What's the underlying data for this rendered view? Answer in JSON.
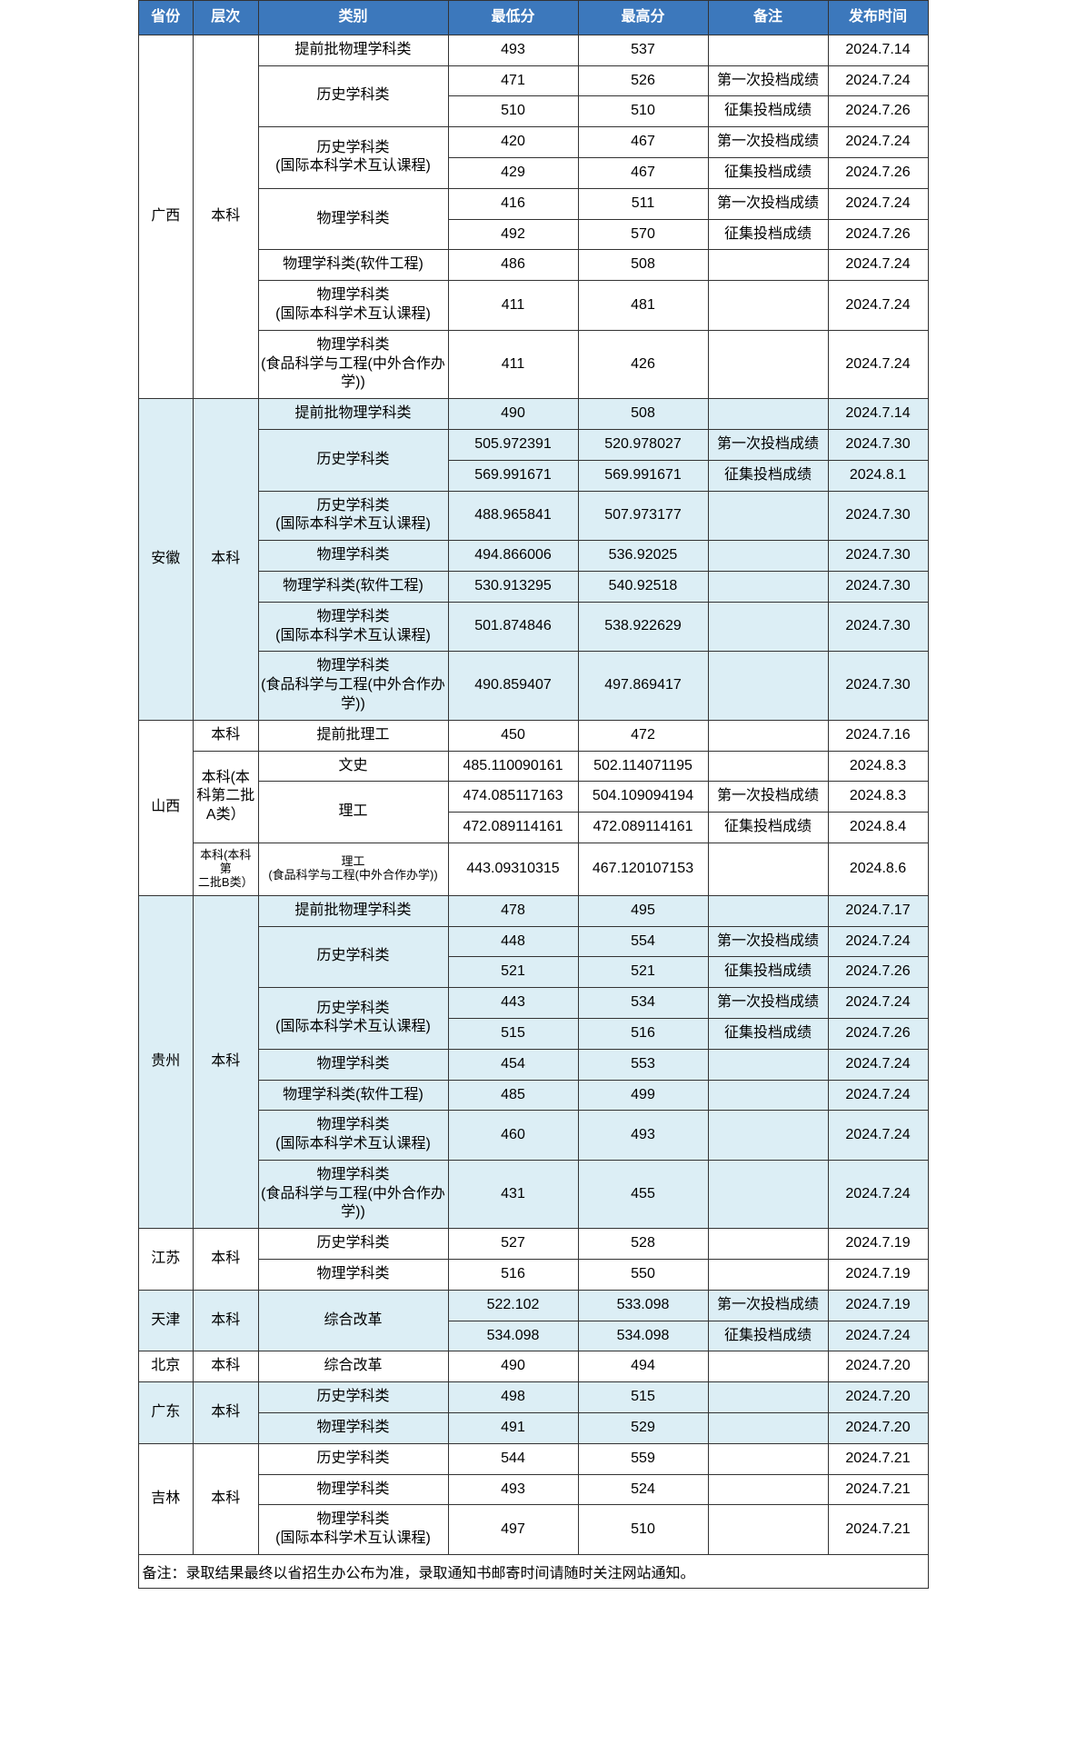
{
  "headers": {
    "province": "省份",
    "level": "层次",
    "category": "类别",
    "min": "最低分",
    "max": "最高分",
    "note": "备注",
    "date": "发布时间"
  },
  "footnote": "备注：录取结果最终以省招生办公布为准，录取通知书邮寄时间请随时关注网站通知。",
  "categories": {
    "advance_phys": "提前批物理学科类",
    "history": "历史学科类",
    "history_intl1": "历史学科类",
    "history_intl2": "(国际本科学术互认课程)",
    "physics": "物理学科类",
    "physics_soft": "物理学科类(软件工程)",
    "physics_intl1": "物理学科类",
    "physics_intl2": "(国际本科学术互认课程)",
    "physics_food1": "物理学科类",
    "physics_food2": "(食品科学与工程(中外合作办学))",
    "advance_sci": "提前批理工",
    "wenshi": "文史",
    "ligong": "理工",
    "ligong_food1": "理工",
    "ligong_food2": "(食品科学与工程(中外合作办学))",
    "reform": "综合改革"
  },
  "notes": {
    "first": "第一次投档成绩",
    "collect": "征集投档成绩"
  },
  "provinces": {
    "guangxi": {
      "name": "广西",
      "level": "本科",
      "rows": [
        {
          "cat": "advance_phys",
          "min": "493",
          "max": "537",
          "note": "",
          "date": "2024.7.14"
        },
        {
          "cat": "history",
          "min": "471",
          "max": "526",
          "note": "first",
          "date": "2024.7.24"
        },
        {
          "cat": "",
          "min": "510",
          "max": "510",
          "note": "collect",
          "date": "2024.7.26"
        },
        {
          "cat": "history_intl",
          "min": "420",
          "max": "467",
          "note": "first",
          "date": "2024.7.24"
        },
        {
          "cat": "",
          "min": "429",
          "max": "467",
          "note": "collect",
          "date": "2024.7.26"
        },
        {
          "cat": "physics",
          "min": "416",
          "max": "511",
          "note": "first",
          "date": "2024.7.24"
        },
        {
          "cat": "",
          "min": "492",
          "max": "570",
          "note": "collect",
          "date": "2024.7.26"
        },
        {
          "cat": "physics_soft",
          "min": "486",
          "max": "508",
          "note": "",
          "date": "2024.7.24"
        },
        {
          "cat": "physics_intl",
          "min": "411",
          "max": "481",
          "note": "",
          "date": "2024.7.24"
        },
        {
          "cat": "physics_food",
          "min": "411",
          "max": "426",
          "note": "",
          "date": "2024.7.24"
        }
      ]
    },
    "anhui": {
      "name": "安徽",
      "level": "本科",
      "rows": [
        {
          "cat": "advance_phys",
          "min": "490",
          "max": "508",
          "note": "",
          "date": "2024.7.14"
        },
        {
          "cat": "history",
          "min": "505.972391",
          "max": "520.978027",
          "note": "first",
          "date": "2024.7.30"
        },
        {
          "cat": "",
          "min": "569.991671",
          "max": "569.991671",
          "note": "collect",
          "date": "2024.8.1"
        },
        {
          "cat": "history_intl",
          "min": "488.965841",
          "max": "507.973177",
          "note": "",
          "date": "2024.7.30"
        },
        {
          "cat": "physics",
          "min": "494.866006",
          "max": "536.92025",
          "note": "",
          "date": "2024.7.30"
        },
        {
          "cat": "physics_soft",
          "min": "530.913295",
          "max": "540.92518",
          "note": "",
          "date": "2024.7.30"
        },
        {
          "cat": "physics_intl",
          "min": "501.874846",
          "max": "538.922629",
          "note": "",
          "date": "2024.7.30"
        },
        {
          "cat": "physics_food",
          "min": "490.859407",
          "max": "497.869417",
          "note": "",
          "date": "2024.7.30"
        }
      ]
    },
    "shanxi": {
      "name": "山西",
      "level1": "本科",
      "level2a": "本科(本",
      "level2b": "科第二批",
      "level2c": "A类）",
      "level3a": "本科(本科第",
      "level3b": "二批B类）",
      "rows": [
        {
          "cat": "advance_sci",
          "min": "450",
          "max": "472",
          "note": "",
          "date": "2024.7.16"
        },
        {
          "cat": "wenshi",
          "min": "485.110090161",
          "max": "502.114071195",
          "note": "",
          "date": "2024.8.3"
        },
        {
          "cat": "ligong",
          "min": "474.085117163",
          "max": "504.109094194",
          "note": "first",
          "date": "2024.8.3"
        },
        {
          "cat": "",
          "min": "472.089114161",
          "max": "472.089114161",
          "note": "collect",
          "date": "2024.8.4"
        },
        {
          "cat": "ligong_food",
          "min": "443.09310315",
          "max": "467.120107153",
          "note": "",
          "date": "2024.8.6"
        }
      ]
    },
    "guizhou": {
      "name": "贵州",
      "level": "本科",
      "rows": [
        {
          "cat": "advance_phys",
          "min": "478",
          "max": "495",
          "note": "",
          "date": "2024.7.17"
        },
        {
          "cat": "history",
          "min": "448",
          "max": "554",
          "note": "first",
          "date": "2024.7.24"
        },
        {
          "cat": "",
          "min": "521",
          "max": "521",
          "note": "collect",
          "date": "2024.7.26"
        },
        {
          "cat": "history_intl",
          "min": "443",
          "max": "534",
          "note": "first",
          "date": "2024.7.24"
        },
        {
          "cat": "",
          "min": "515",
          "max": "516",
          "note": "collect",
          "date": "2024.7.26"
        },
        {
          "cat": "physics",
          "min": "454",
          "max": "553",
          "note": "",
          "date": "2024.7.24"
        },
        {
          "cat": "physics_soft",
          "min": "485",
          "max": "499",
          "note": "",
          "date": "2024.7.24"
        },
        {
          "cat": "physics_intl",
          "min": "460",
          "max": "493",
          "note": "",
          "date": "2024.7.24"
        },
        {
          "cat": "physics_food",
          "min": "431",
          "max": "455",
          "note": "",
          "date": "2024.7.24"
        }
      ]
    },
    "jiangsu": {
      "name": "江苏",
      "level": "本科",
      "rows": [
        {
          "cat": "history",
          "min": "527",
          "max": "528",
          "note": "",
          "date": "2024.7.19"
        },
        {
          "cat": "physics",
          "min": "516",
          "max": "550",
          "note": "",
          "date": "2024.7.19"
        }
      ]
    },
    "tianjin": {
      "name": "天津",
      "level": "本科",
      "rows": [
        {
          "cat": "reform",
          "min": "522.102",
          "max": "533.098",
          "note": "first",
          "date": "2024.7.19"
        },
        {
          "cat": "",
          "min": "534.098",
          "max": "534.098",
          "note": "collect",
          "date": "2024.7.24"
        }
      ]
    },
    "beijing": {
      "name": "北京",
      "level": "本科",
      "rows": [
        {
          "cat": "reform",
          "min": "490",
          "max": "494",
          "note": "",
          "date": "2024.7.20"
        }
      ]
    },
    "guangdong": {
      "name": "广东",
      "level": "本科",
      "rows": [
        {
          "cat": "history",
          "min": "498",
          "max": "515",
          "note": "",
          "date": "2024.7.20"
        },
        {
          "cat": "physics",
          "min": "491",
          "max": "529",
          "note": "",
          "date": "2024.7.20"
        }
      ]
    },
    "jilin": {
      "name": "吉林",
      "level": "本科",
      "rows": [
        {
          "cat": "history",
          "min": "544",
          "max": "559",
          "note": "",
          "date": "2024.7.21"
        },
        {
          "cat": "physics",
          "min": "493",
          "max": "524",
          "note": "",
          "date": "2024.7.21"
        },
        {
          "cat": "physics_intl",
          "min": "497",
          "max": "510",
          "note": "",
          "date": "2024.7.21"
        }
      ]
    }
  }
}
